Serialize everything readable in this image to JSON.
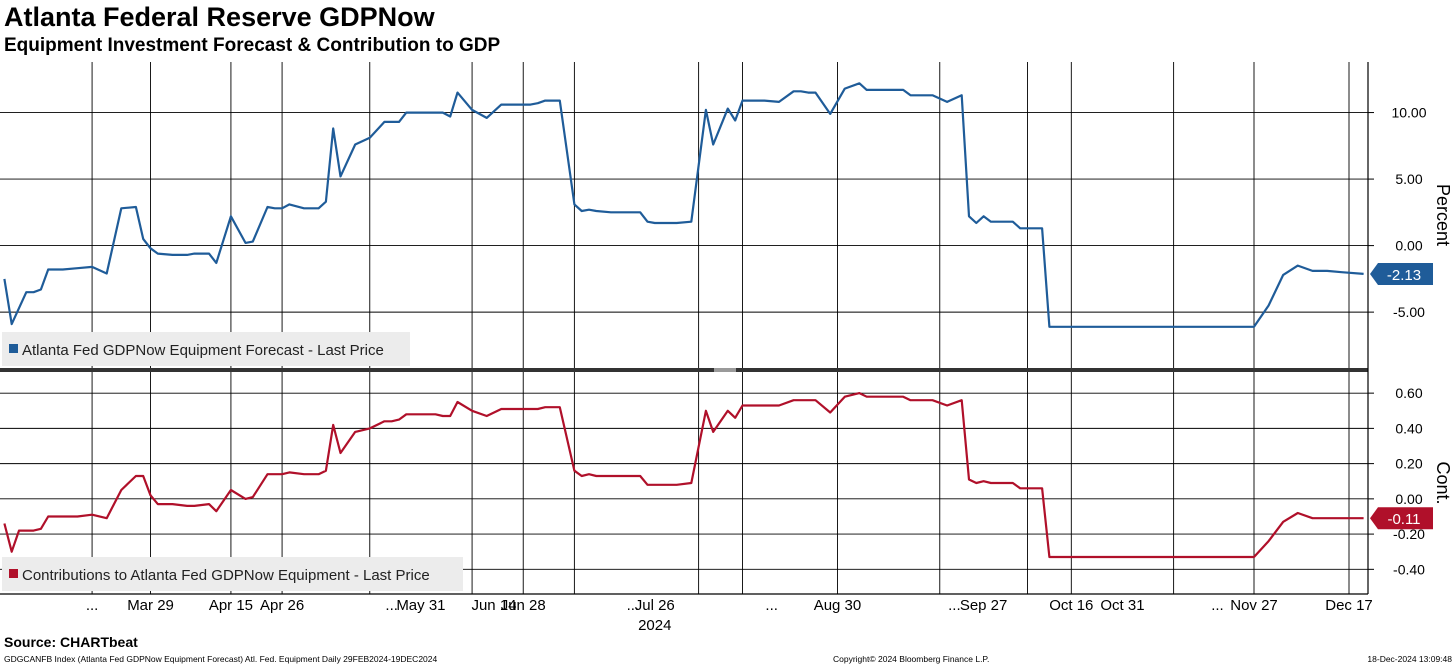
{
  "header": {
    "title": "Atlanta Federal Reserve GDPNow",
    "subtitle": "Equipment Investment Forecast & Contribution to GDP"
  },
  "footer": {
    "source": "Source: CHARTbeat",
    "description": "GDGCANFB Index (Atlanta Fed GDPNow Equipment Forecast) Atl. Fed. Equipment  Daily 29FEB2024-19DEC2024",
    "copyright": "Copyright© 2024 Bloomberg Finance L.P.",
    "timestamp": "18-Dec-2024 13:09:48"
  },
  "colors": {
    "top_series": "#1f5c99",
    "bottom_series": "#b0102a",
    "grid": "#000000",
    "legend_bg": "#ececec"
  },
  "chart_data": [
    {
      "type": "line",
      "ylabel": "Percent",
      "ylim": [
        -9.2,
        13.8
      ],
      "yticks": [
        10,
        5,
        0,
        -5
      ],
      "ytick_labels": [
        "10.00",
        "5.00",
        "0.00",
        "-5.00"
      ],
      "grid": true,
      "legend_position": "bottom-left",
      "last_value_label": "-2.13",
      "series": [
        {
          "name": "Atlanta Fed GDPNow Equipment Forecast - Last Price",
          "x": [
            0,
            1,
            3,
            4,
            5,
            6,
            8,
            10,
            12,
            14,
            16,
            18,
            19,
            20,
            21,
            23,
            25,
            26,
            28,
            29,
            31,
            33,
            34,
            36,
            37,
            38,
            39,
            41,
            43,
            44,
            45,
            46,
            48,
            50,
            52,
            53,
            54,
            55,
            57,
            59,
            60,
            61,
            62,
            64,
            66,
            68,
            70,
            72,
            73,
            74,
            76,
            78,
            79,
            80,
            81,
            83,
            85,
            87,
            88,
            89,
            90,
            92,
            94,
            96,
            97,
            99,
            100,
            101,
            102,
            104,
            106,
            108,
            109,
            110,
            111,
            113,
            115,
            117,
            118,
            120,
            122,
            123,
            124,
            125,
            127,
            129,
            131,
            132,
            133,
            134,
            135,
            137,
            138,
            139,
            140,
            141,
            142,
            143
          ],
          "y": [
            -2.5,
            -5.9,
            -3.5,
            -3.5,
            -3.3,
            -1.8,
            -1.8,
            -1.7,
            -1.6,
            -2.1,
            2.8,
            2.9,
            0.5,
            -0.2,
            -0.6,
            -0.7,
            -0.7,
            -0.6,
            -0.6,
            -1.3,
            2.2,
            0.2,
            0.3,
            2.9,
            2.8,
            2.8,
            3.1,
            2.8,
            2.8,
            3.3,
            8.8,
            5.2,
            7.6,
            8.1,
            9.3,
            9.3,
            9.3,
            10.0,
            10.0,
            10.0,
            10.0,
            9.7,
            11.5,
            10.2,
            9.6,
            10.6,
            10.6,
            10.6,
            10.7,
            10.9,
            10.9,
            3.1,
            2.6,
            2.7,
            2.6,
            2.5,
            2.5,
            2.5,
            1.8,
            1.7,
            1.7,
            1.7,
            1.8,
            10.2,
            7.6,
            10.3,
            9.4,
            10.9,
            10.9,
            10.9,
            10.8,
            11.6,
            11.6,
            11.5,
            11.5,
            9.9,
            11.8,
            12.2,
            11.7,
            11.7,
            11.7,
            11.7,
            11.3,
            11.3,
            11.3,
            10.8,
            11.3,
            2.2,
            1.7,
            2.2,
            1.8,
            1.8,
            1.8,
            1.3,
            1.3,
            1.3,
            1.3,
            -6.1
          ]
        }
      ]
    },
    {
      "type": "line",
      "ylabel": "Cont.",
      "ylim": [
        -0.54,
        0.72
      ],
      "yticks": [
        0.6,
        0.4,
        0.2,
        0.0,
        -0.2,
        -0.4
      ],
      "ytick_labels": [
        "0.60",
        "0.40",
        "0.20",
        "0.00",
        "-0.20",
        "-0.40"
      ],
      "grid": true,
      "legend_position": "bottom-left",
      "last_value_label": "-0.11",
      "series": [
        {
          "name": "Contributions to Atlanta Fed GDPNow Equipment - Last Price",
          "x": [
            0,
            1,
            2,
            4,
            5,
            6,
            8,
            10,
            12,
            14,
            16,
            18,
            19,
            20,
            21,
            23,
            25,
            26,
            28,
            29,
            31,
            33,
            34,
            36,
            37,
            38,
            39,
            41,
            43,
            44,
            45,
            46,
            48,
            50,
            52,
            53,
            54,
            55,
            57,
            59,
            60,
            61,
            62,
            64,
            66,
            68,
            70,
            72,
            73,
            74,
            76,
            78,
            79,
            80,
            81,
            83,
            85,
            87,
            88,
            89,
            90,
            92,
            94,
            96,
            97,
            99,
            100,
            101,
            102,
            104,
            106,
            108,
            109,
            110,
            111,
            113,
            115,
            117,
            118,
            120,
            122,
            123,
            124,
            125,
            127,
            129,
            131,
            132,
            133,
            134,
            135,
            137,
            138,
            139,
            140,
            141,
            142,
            143
          ],
          "y": [
            -0.14,
            -0.3,
            -0.18,
            -0.18,
            -0.17,
            -0.1,
            -0.1,
            -0.1,
            -0.09,
            -0.11,
            0.05,
            0.13,
            0.13,
            0.02,
            -0.03,
            -0.03,
            -0.04,
            -0.04,
            -0.03,
            -0.07,
            0.05,
            0.0,
            0.01,
            0.14,
            0.14,
            0.14,
            0.15,
            0.14,
            0.14,
            0.16,
            0.42,
            0.26,
            0.38,
            0.4,
            0.44,
            0.44,
            0.45,
            0.48,
            0.48,
            0.48,
            0.47,
            0.47,
            0.55,
            0.5,
            0.47,
            0.51,
            0.51,
            0.51,
            0.51,
            0.52,
            0.52,
            0.16,
            0.13,
            0.14,
            0.13,
            0.13,
            0.13,
            0.13,
            0.08,
            0.08,
            0.08,
            0.08,
            0.09,
            0.5,
            0.38,
            0.5,
            0.46,
            0.53,
            0.53,
            0.53,
            0.53,
            0.56,
            0.56,
            0.56,
            0.56,
            0.49,
            0.58,
            0.6,
            0.58,
            0.58,
            0.58,
            0.58,
            0.56,
            0.56,
            0.56,
            0.53,
            0.56,
            0.11,
            0.09,
            0.1,
            0.09,
            0.09,
            0.09,
            0.06,
            0.06,
            0.06,
            0.06,
            -0.33
          ]
        }
      ]
    }
  ],
  "x_axis": {
    "tick_labels": [
      "...",
      "Mar 29",
      "Apr 15",
      "Apr 26",
      "...",
      "May 31",
      "Jun 14",
      "Jun 28",
      "...",
      "Jul 26",
      "...",
      "Aug 30",
      "...",
      "Sep 27",
      "Oct 16",
      "Oct 31",
      "...",
      "Nov 27",
      "Dec 17"
    ],
    "tick_positions": [
      12,
      20,
      31,
      38,
      53,
      57,
      67,
      71,
      86,
      89,
      105,
      114,
      130,
      134,
      146,
      153,
      166,
      171,
      184
    ],
    "year_label": "2024",
    "gridline_positions": [
      12,
      20,
      31,
      38,
      50,
      64,
      71,
      78,
      95,
      101,
      114,
      128,
      140,
      146,
      160,
      171,
      184
    ]
  },
  "tail_series": {
    "x": [
      171,
      173,
      175,
      177,
      179,
      181,
      183,
      186
    ],
    "top_y": [
      -6.1,
      -4.5,
      -2.2,
      -1.5,
      -1.9,
      -1.9,
      -2.0,
      -2.13
    ],
    "bottom_y": [
      -0.33,
      -0.24,
      -0.13,
      -0.08,
      -0.11,
      -0.11,
      -0.11,
      -0.11
    ]
  }
}
